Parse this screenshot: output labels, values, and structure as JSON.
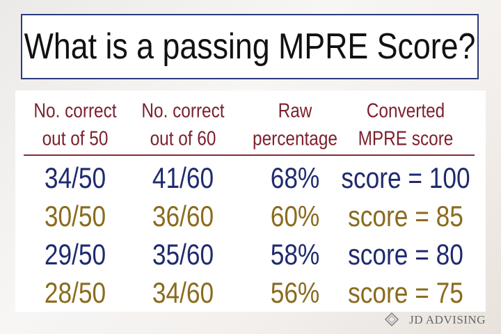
{
  "header": {
    "title": "What is a passing MPRE Score?"
  },
  "table": {
    "columns": [
      [
        "No. correct",
        "out of 50"
      ],
      [
        "No. correct",
        "out of 60"
      ],
      [
        "Raw",
        "percentage"
      ],
      [
        "Converted",
        "MPRE score"
      ]
    ],
    "rows": [
      [
        "34/50",
        "41/60",
        "68%",
        "score = 100"
      ],
      [
        "30/50",
        "36/60",
        "60%",
        "score = 85"
      ],
      [
        "29/50",
        "35/60",
        "58%",
        "score = 80"
      ],
      [
        "28/50",
        "34/60",
        "56%",
        "score = 75"
      ]
    ]
  },
  "footer": {
    "brand": "JD ADVISING"
  }
}
